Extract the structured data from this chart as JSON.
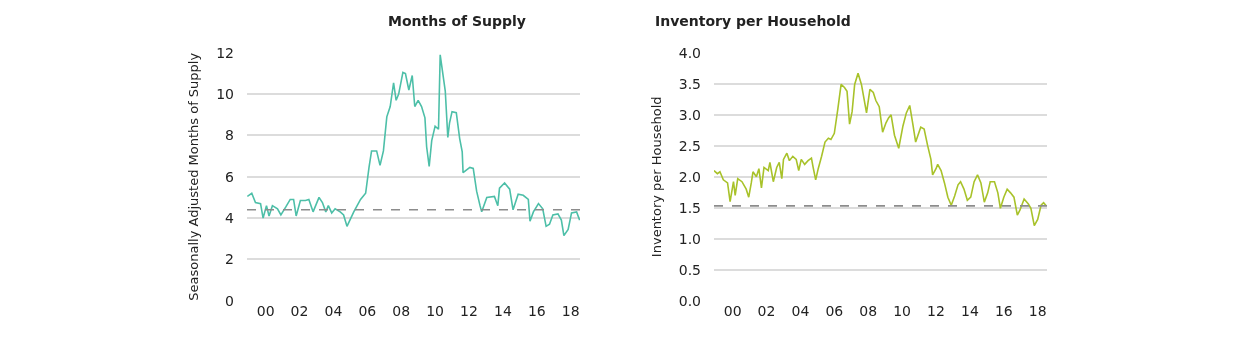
{
  "chart_data": [
    {
      "type": "line",
      "title": "Months of Supply",
      "ylabel": "Seasonally Adjusted Months of Supply",
      "grid": "y",
      "marker": "none",
      "line_style": "solid",
      "xlim": [
        1998.9,
        2018.55
      ],
      "xticks": [
        {
          "value": 2000,
          "label": "00"
        },
        {
          "value": 2002,
          "label": "02"
        },
        {
          "value": 2004,
          "label": "04"
        },
        {
          "value": 2006,
          "label": "06"
        },
        {
          "value": 2008,
          "label": "08"
        },
        {
          "value": 2010,
          "label": "10"
        },
        {
          "value": 2012,
          "label": "12"
        },
        {
          "value": 2014,
          "label": "14"
        },
        {
          "value": 2016,
          "label": "16"
        },
        {
          "value": 2018,
          "label": "18"
        }
      ],
      "ylim": [
        0,
        12
      ],
      "yticks": [
        0,
        2,
        4,
        6,
        8,
        10,
        12
      ],
      "ref_lines": [
        {
          "axis": "y",
          "value": 4.4,
          "color": "#8c8c8c",
          "line_style": "dashed"
        }
      ],
      "series": [
        {
          "color": "#4dbfa8",
          "x": [
            1998.92,
            1999.18,
            1999.4,
            1999.7,
            1999.85,
            2000.05,
            2000.2,
            2000.4,
            2000.7,
            2000.9,
            2001.2,
            2001.45,
            2001.65,
            2001.8,
            2002.05,
            2002.35,
            2002.55,
            2002.8,
            2003.15,
            2003.35,
            2003.55,
            2003.7,
            2003.9,
            2004.1,
            2004.4,
            2004.6,
            2004.8,
            2005.2,
            2005.6,
            2005.9,
            2006.1,
            2006.25,
            2006.55,
            2006.75,
            2006.95,
            2007.15,
            2007.35,
            2007.55,
            2007.7,
            2007.85,
            2008.1,
            2008.25,
            2008.45,
            2008.65,
            2008.8,
            2009.0,
            2009.2,
            2009.4,
            2009.5,
            2009.65,
            2009.8,
            2010.0,
            2010.2,
            2010.3,
            2010.6,
            2010.75,
            2010.85,
            2011.0,
            2011.25,
            2011.45,
            2011.6,
            2011.65,
            2012.05,
            2012.25,
            2012.45,
            2012.65,
            2012.75,
            2013.05,
            2013.5,
            2013.7,
            2013.8,
            2014.1,
            2014.4,
            2014.6,
            2014.9,
            2015.2,
            2015.5,
            2015.6,
            2015.8,
            2016.1,
            2016.35,
            2016.55,
            2016.75,
            2016.95,
            2017.25,
            2017.45,
            2017.6,
            2017.85,
            2018.05,
            2018.35,
            2018.53
          ],
          "values": [
            5.05,
            5.2,
            4.75,
            4.7,
            4.0,
            4.6,
            4.1,
            4.6,
            4.45,
            4.15,
            4.55,
            4.9,
            4.9,
            4.1,
            4.85,
            4.85,
            4.9,
            4.3,
            5.0,
            4.75,
            4.3,
            4.6,
            4.25,
            4.45,
            4.3,
            4.15,
            3.6,
            4.3,
            4.9,
            5.2,
            6.45,
            7.25,
            7.25,
            6.55,
            7.25,
            8.9,
            9.4,
            10.55,
            9.7,
            10.0,
            11.05,
            11.0,
            10.2,
            10.9,
            9.4,
            9.7,
            9.4,
            8.85,
            7.45,
            6.5,
            7.75,
            8.45,
            8.3,
            11.9,
            10.15,
            7.9,
            8.6,
            9.15,
            9.1,
            7.85,
            7.2,
            6.2,
            6.45,
            6.4,
            5.3,
            4.6,
            4.3,
            5.0,
            5.05,
            4.6,
            5.45,
            5.7,
            5.4,
            4.4,
            5.15,
            5.1,
            4.9,
            3.85,
            4.3,
            4.7,
            4.45,
            3.6,
            3.7,
            4.15,
            4.2,
            3.9,
            3.15,
            3.45,
            4.25,
            4.3,
            3.9
          ]
        }
      ]
    },
    {
      "type": "line",
      "title": "Inventory per Household",
      "ylabel": "Inventory per Household",
      "grid": "y",
      "marker": "none",
      "line_style": "solid",
      "xlim": [
        1998.9,
        2018.55
      ],
      "xticks": [
        {
          "value": 2000,
          "label": "00"
        },
        {
          "value": 2002,
          "label": "02"
        },
        {
          "value": 2004,
          "label": "04"
        },
        {
          "value": 2006,
          "label": "06"
        },
        {
          "value": 2008,
          "label": "08"
        },
        {
          "value": 2010,
          "label": "10"
        },
        {
          "value": 2012,
          "label": "12"
        },
        {
          "value": 2014,
          "label": "14"
        },
        {
          "value": 2016,
          "label": "16"
        },
        {
          "value": 2018,
          "label": "18"
        }
      ],
      "ylim": [
        0,
        4
      ],
      "yticks": [
        {
          "value": 0,
          "label": "0.0"
        },
        {
          "value": 0.5,
          "label": "0.5"
        },
        {
          "value": 1,
          "label": "1.0"
        },
        {
          "value": 1.5,
          "label": "1.5"
        },
        {
          "value": 2,
          "label": "2.0"
        },
        {
          "value": 2.5,
          "label": "2.5"
        },
        {
          "value": 3,
          "label": "3.0"
        },
        {
          "value": 3.5,
          "label": "3.5"
        },
        {
          "value": 4,
          "label": "4.0"
        }
      ],
      "ref_lines": [
        {
          "axis": "y",
          "value": 1.53,
          "color": "#8c8c8c",
          "line_style": "dashed"
        }
      ],
      "series": [
        {
          "color": "#a8c22a",
          "x": [
            1998.9,
            1999.1,
            1999.25,
            1999.45,
            1999.7,
            1999.85,
            2000.05,
            2000.15,
            2000.3,
            2000.55,
            2000.8,
            2000.95,
            2001.1,
            2001.2,
            2001.4,
            2001.55,
            2001.7,
            2001.85,
            2002.1,
            2002.2,
            2002.4,
            2002.6,
            2002.75,
            2002.9,
            2003.0,
            2003.2,
            2003.35,
            2003.55,
            2003.75,
            2003.9,
            2004.05,
            2004.25,
            2004.45,
            2004.65,
            2004.75,
            2004.9,
            2005.05,
            2005.25,
            2005.45,
            2005.65,
            2005.8,
            2006.0,
            2006.2,
            2006.4,
            2006.6,
            2006.75,
            2006.9,
            2007.05,
            2007.2,
            2007.4,
            2007.6,
            2007.75,
            2007.9,
            2008.1,
            2008.3,
            2008.45,
            2008.65,
            2008.85,
            2009.05,
            2009.2,
            2009.35,
            2009.55,
            2009.8,
            2010.05,
            2010.25,
            2010.45,
            2010.65,
            2010.8,
            2011.1,
            2011.3,
            2011.5,
            2011.7,
            2011.8,
            2012.0,
            2012.1,
            2012.3,
            2012.5,
            2012.7,
            2012.9,
            2013.1,
            2013.3,
            2013.45,
            2013.65,
            2013.85,
            2014.05,
            2014.25,
            2014.45,
            2014.65,
            2014.85,
            2015.05,
            2015.2,
            2015.45,
            2015.65,
            2015.8,
            2016.0,
            2016.2,
            2016.4,
            2016.6,
            2016.8,
            2016.95,
            2017.2,
            2017.45,
            2017.6,
            2017.8,
            2018.0,
            2018.2,
            2018.35,
            2018.5
          ],
          "values": [
            2.1,
            2.05,
            2.08,
            1.95,
            1.9,
            1.6,
            1.92,
            1.7,
            1.97,
            1.92,
            1.8,
            1.67,
            1.9,
            2.08,
            2.0,
            2.13,
            1.82,
            2.15,
            2.1,
            2.23,
            1.92,
            2.15,
            2.23,
            1.97,
            2.28,
            2.38,
            2.26,
            2.33,
            2.28,
            2.1,
            2.28,
            2.2,
            2.26,
            2.3,
            2.15,
            1.95,
            2.13,
            2.33,
            2.56,
            2.62,
            2.6,
            2.7,
            3.08,
            3.49,
            3.44,
            3.38,
            2.85,
            3.05,
            3.49,
            3.67,
            3.49,
            3.26,
            3.03,
            3.41,
            3.36,
            3.23,
            3.13,
            2.72,
            2.87,
            2.95,
            3.0,
            2.67,
            2.46,
            2.82,
            3.03,
            3.15,
            2.82,
            2.56,
            2.8,
            2.77,
            2.51,
            2.28,
            2.03,
            2.13,
            2.2,
            2.1,
            1.9,
            1.67,
            1.54,
            1.69,
            1.87,
            1.92,
            1.8,
            1.62,
            1.67,
            1.92,
            2.03,
            1.9,
            1.59,
            1.74,
            1.92,
            1.92,
            1.74,
            1.49,
            1.67,
            1.8,
            1.74,
            1.67,
            1.38,
            1.46,
            1.64,
            1.56,
            1.49,
            1.21,
            1.31,
            1.54,
            1.58,
            1.53
          ]
        }
      ]
    }
  ]
}
